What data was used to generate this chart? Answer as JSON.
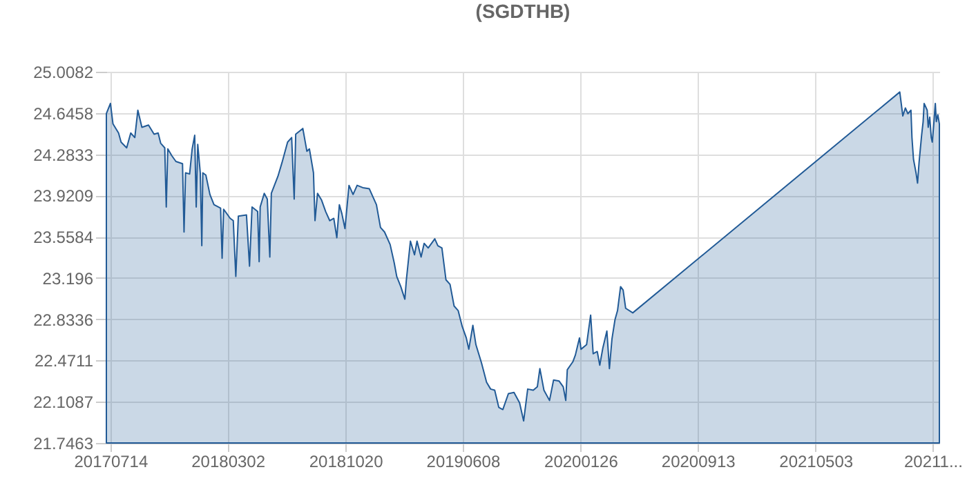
{
  "chart_data": {
    "type": "area",
    "title": "(SGDTHB)",
    "x": [
      "2017-07-06",
      "2017-07-14",
      "2017-07-19",
      "2017-07-30",
      "2017-08-04",
      "2017-08-15",
      "2017-08-23",
      "2017-08-31",
      "2017-09-06",
      "2017-09-14",
      "2017-09-27",
      "2017-10-08",
      "2017-10-16",
      "2017-10-21",
      "2017-10-29",
      "2017-11-01",
      "2017-11-04",
      "2017-11-12",
      "2017-11-20",
      "2017-12-03",
      "2017-12-06",
      "2017-12-09",
      "2017-12-17",
      "2017-12-22",
      "2017-12-27",
      "2017-12-30",
      "2018-01-02",
      "2018-01-07",
      "2018-01-10",
      "2018-01-12",
      "2018-01-18",
      "2018-01-26",
      "2018-02-03",
      "2018-02-16",
      "2018-02-19",
      "2018-02-22",
      "2018-03-07",
      "2018-03-13",
      "2018-03-18",
      "2018-03-23",
      "2018-04-08",
      "2018-04-14",
      "2018-04-19",
      "2018-04-30",
      "2018-05-03",
      "2018-05-05",
      "2018-05-13",
      "2018-05-19",
      "2018-05-24",
      "2018-05-27",
      "2018-06-09",
      "2018-06-17",
      "2018-06-28",
      "2018-07-06",
      "2018-07-11",
      "2018-07-14",
      "2018-07-28",
      "2018-08-05",
      "2018-08-10",
      "2018-08-18",
      "2018-08-21",
      "2018-08-26",
      "2018-09-03",
      "2018-09-11",
      "2018-09-19",
      "2018-09-27",
      "2018-10-03",
      "2018-10-08",
      "2018-10-13",
      "2018-10-19",
      "2018-10-27",
      "2018-11-04",
      "2018-11-12",
      "2018-11-23",
      "2018-12-06",
      "2018-12-20",
      "2018-12-28",
      "2019-01-05",
      "2019-01-16",
      "2019-01-24",
      "2019-01-29",
      "2019-02-06",
      "2019-02-14",
      "2019-02-17",
      "2019-02-25",
      "2019-03-05",
      "2019-03-10",
      "2019-03-18",
      "2019-03-24",
      "2019-04-01",
      "2019-04-14",
      "2019-04-20",
      "2019-04-28",
      "2019-05-06",
      "2019-05-14",
      "2019-05-22",
      "2019-05-30",
      "2019-06-07",
      "2019-06-15",
      "2019-06-20",
      "2019-06-28",
      "2019-07-04",
      "2019-07-15",
      "2019-07-25",
      "2019-08-02",
      "2019-08-10",
      "2019-08-18",
      "2019-08-26",
      "2019-09-06",
      "2019-09-17",
      "2019-09-28",
      "2019-10-06",
      "2019-10-14",
      "2019-10-25",
      "2019-11-02",
      "2019-11-07",
      "2019-11-15",
      "2019-11-26",
      "2019-12-04",
      "2019-12-15",
      "2019-12-23",
      "2019-12-28",
      "2019-12-31",
      "2020-01-11",
      "2020-01-16",
      "2020-01-24",
      "2020-01-27",
      "2020-02-07",
      "2020-02-15",
      "2020-02-20",
      "2020-02-28",
      "2020-03-04",
      "2020-03-10",
      "2020-03-18",
      "2020-03-23",
      "2020-03-28",
      "2020-04-03",
      "2020-04-08",
      "2020-04-14",
      "2020-04-19",
      "2020-04-24",
      "2020-05-08",
      "2021-10-16",
      "2021-10-22",
      "2021-10-27",
      "2021-11-01",
      "2021-11-07",
      "2021-11-09",
      "2021-11-12",
      "2021-11-17",
      "2021-11-20",
      "2021-11-23",
      "2021-11-28",
      "2021-12-01",
      "2021-12-03",
      "2021-12-09",
      "2021-12-11",
      "2021-12-14",
      "2021-12-17",
      "2021-12-19",
      "2021-12-22",
      "2021-12-25",
      "2021-12-27",
      "2021-12-30",
      "2022-01-02"
    ],
    "series": [
      {
        "color": "#215a96",
        "values": [
          24.64,
          24.73,
          24.55,
          24.47,
          24.39,
          24.34,
          24.47,
          24.43,
          24.67,
          24.52,
          24.54,
          24.46,
          24.47,
          24.38,
          24.34,
          23.82,
          24.33,
          24.27,
          24.22,
          24.2,
          23.6,
          24.12,
          24.11,
          24.33,
          24.45,
          23.82,
          24.37,
          24.12,
          23.48,
          24.12,
          24.1,
          23.93,
          23.84,
          23.81,
          23.37,
          23.8,
          23.72,
          23.7,
          23.21,
          23.74,
          23.75,
          23.3,
          23.82,
          23.78,
          23.34,
          23.82,
          23.94,
          23.89,
          23.38,
          23.94,
          24.09,
          24.21,
          24.39,
          24.43,
          23.89,
          24.46,
          24.51,
          24.31,
          24.33,
          24.12,
          23.7,
          23.94,
          23.88,
          23.78,
          23.7,
          23.72,
          23.55,
          23.84,
          23.76,
          23.63,
          24.01,
          23.93,
          24.01,
          23.99,
          23.98,
          23.84,
          23.64,
          23.6,
          23.49,
          23.33,
          23.21,
          23.12,
          23.01,
          23.18,
          23.52,
          23.4,
          23.52,
          23.38,
          23.5,
          23.46,
          23.54,
          23.48,
          23.46,
          23.18,
          23.14,
          22.95,
          22.91,
          22.77,
          22.67,
          22.57,
          22.78,
          22.61,
          22.45,
          22.28,
          22.22,
          22.21,
          22.06,
          22.04,
          22.18,
          22.19,
          22.1,
          21.94,
          22.22,
          22.21,
          22.24,
          22.4,
          22.21,
          22.12,
          22.3,
          22.29,
          22.24,
          22.12,
          22.39,
          22.46,
          22.52,
          22.67,
          22.57,
          22.61,
          22.87,
          22.53,
          22.55,
          22.43,
          22.58,
          22.73,
          22.4,
          22.66,
          22.83,
          22.91,
          23.12,
          23.09,
          22.93,
          22.89,
          24.83,
          24.62,
          24.69,
          24.64,
          24.67,
          24.43,
          24.24,
          24.12,
          24.03,
          24.21,
          24.45,
          24.57,
          24.73,
          24.67,
          24.52,
          24.61,
          24.43,
          24.39,
          24.55,
          24.73,
          24.57,
          24.63,
          24.55
        ]
      }
    ],
    "xlim": [
      "2017-07-06",
      "2022-01-02"
    ],
    "xticks": [
      {
        "value": "2017-07-14",
        "label": "20170714"
      },
      {
        "value": "2018-03-02",
        "label": "20180302"
      },
      {
        "value": "2018-10-20",
        "label": "20181020"
      },
      {
        "value": "2019-06-08",
        "label": "20190608"
      },
      {
        "value": "2020-01-26",
        "label": "20200126"
      },
      {
        "value": "2020-09-13",
        "label": "20200913"
      },
      {
        "value": "2021-05-03",
        "label": "20210503"
      },
      {
        "value": "2021-12-20",
        "label": "20211..."
      }
    ],
    "ylim": [
      21.7463,
      25.0082
    ],
    "yticks": [
      21.7463,
      22.1087,
      22.4711,
      22.8336,
      23.196,
      23.5584,
      23.9209,
      24.2833,
      24.6458,
      25.0082
    ],
    "grid": true
  }
}
